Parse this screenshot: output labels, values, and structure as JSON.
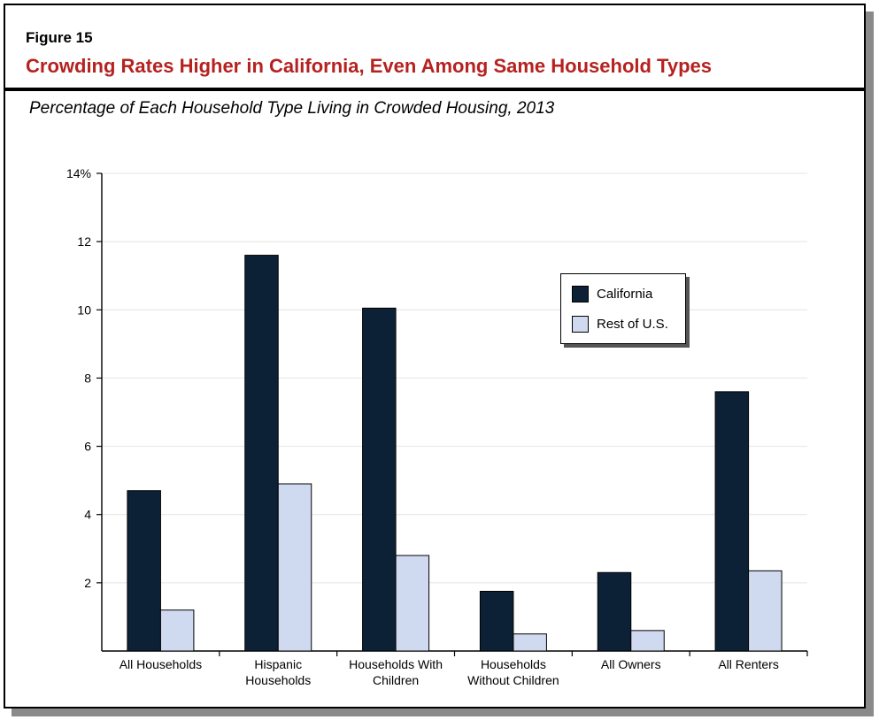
{
  "figure": {
    "label": "Figure 15",
    "title": "Crowding Rates Higher in California, Even Among Same Household Types",
    "subtitle": "Percentage of Each Household Type Living in Crowded Housing, 2013"
  },
  "colors": {
    "title": "#b5221f",
    "california": "#0d2136",
    "rest_of_us": "#cfd9ef",
    "grid": "#e4e4e4"
  },
  "chart_data": {
    "type": "bar",
    "categories": [
      [
        "All Households"
      ],
      [
        "Hispanic",
        "Households"
      ],
      [
        "Households With",
        "Children"
      ],
      [
        "Households",
        "Without Children"
      ],
      [
        "All Owners"
      ],
      [
        "All Renters"
      ]
    ],
    "series": [
      {
        "name": "California",
        "values": [
          4.7,
          11.6,
          10.05,
          1.75,
          2.3,
          7.6
        ]
      },
      {
        "name": "Rest of U.S.",
        "values": [
          1.2,
          4.9,
          2.8,
          0.5,
          0.6,
          2.35
        ]
      }
    ],
    "ylim": [
      0,
      14
    ],
    "yticks": [
      {
        "value": 2,
        "label": "2"
      },
      {
        "value": 4,
        "label": "4"
      },
      {
        "value": 6,
        "label": "6"
      },
      {
        "value": 8,
        "label": "8"
      },
      {
        "value": 10,
        "label": "10"
      },
      {
        "value": 12,
        "label": "12"
      },
      {
        "value": 14,
        "label": "14%"
      }
    ],
    "grid": true,
    "legend_position": "upper-right"
  }
}
